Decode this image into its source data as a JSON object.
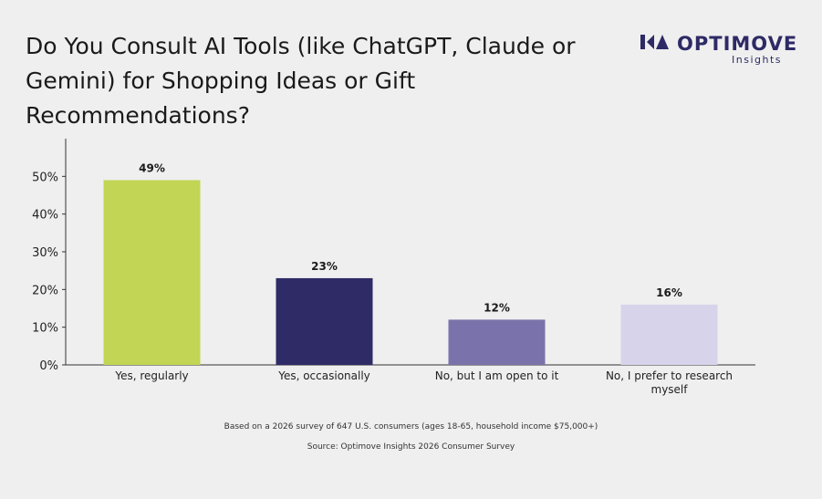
{
  "title": "Do You Consult AI Tools (like ChatGPT, Claude or Gemini) for Shopping Ideas or Gift Recommendations?",
  "logo": {
    "name": "OPTIMOVE",
    "sub": "Insights"
  },
  "colors": {
    "brand": "#2d2a66",
    "axis": "#333333"
  },
  "chart_data": {
    "type": "bar",
    "categories": [
      "Yes, regularly",
      "Yes, occasionally",
      "No, but I am open to it",
      "No, I prefer to research myself"
    ],
    "values": [
      49,
      23,
      12,
      16
    ],
    "data_labels": [
      "49%",
      "23%",
      "12%",
      "16%"
    ],
    "bar_colors": [
      "#c2d554",
      "#2e2b66",
      "#7a73ab",
      "#d7d3eb"
    ],
    "ylim": [
      0,
      60
    ],
    "yticks": [
      0,
      10,
      20,
      30,
      40,
      50
    ],
    "ytick_labels": [
      "0%",
      "10%",
      "20%",
      "30%",
      "40%",
      "50%"
    ],
    "grid": false,
    "legend": "none"
  },
  "footnote": "Based on a 2026 survey of 647 U.S. consumers (ages 18-65, household income $75,000+)",
  "source": "Source: Optimove Insights 2026 Consumer Survey"
}
